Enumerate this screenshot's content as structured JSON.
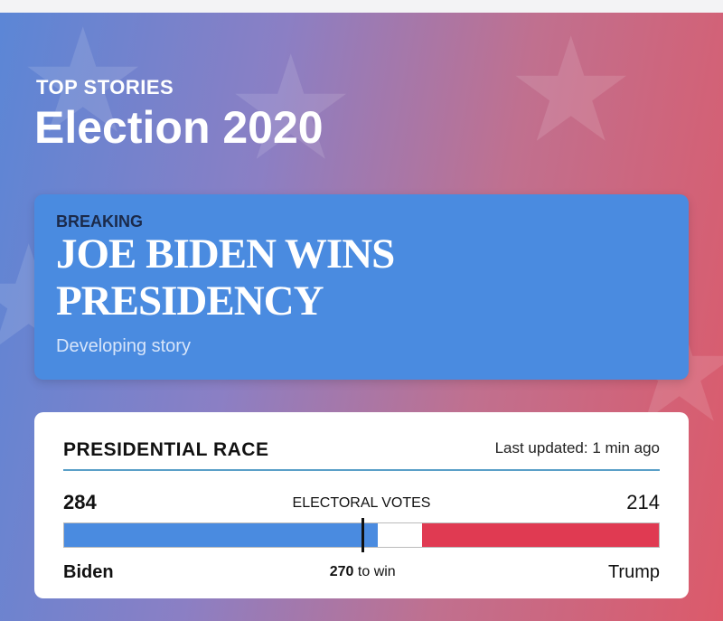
{
  "header": {
    "kicker": "TOP STORIES",
    "title": "Election 2020"
  },
  "breaking": {
    "label": "BREAKING",
    "headline": "JOE BIDEN WINS PRESIDENCY",
    "status": "Developing story"
  },
  "race": {
    "title": "PRESIDENTIAL RACE",
    "updated": "Last updated: 1 min ago",
    "axis_label": "ELECTORAL VOTES",
    "xlim": [
      0,
      538
    ],
    "candidates": [
      {
        "name": "Biden",
        "votes": 284,
        "color": "#4a8be0"
      },
      {
        "name": "Trump",
        "votes": 214,
        "color": "#e03a52"
      }
    ],
    "threshold": 270,
    "threshold_label": "to win"
  }
}
